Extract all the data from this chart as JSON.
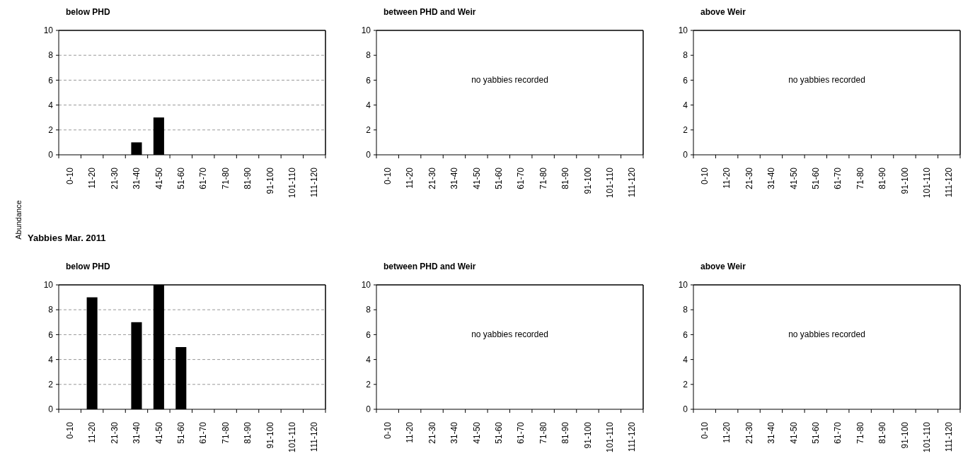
{
  "chart_data": [
    {
      "type": "bar",
      "subtitle": "below PHD",
      "ylabel": "Abundance",
      "categories": [
        "0-10",
        "11-20",
        "21-30",
        "31-40",
        "41-50",
        "51-60",
        "61-70",
        "71-80",
        "81-90",
        "91-100",
        "101-110",
        "111-120"
      ],
      "values": [
        0,
        0,
        0,
        1,
        3,
        0,
        0,
        0,
        0,
        0,
        0,
        0
      ],
      "color": "#000000",
      "ylim": [
        0,
        10
      ],
      "yticks": [
        0,
        2,
        4,
        6,
        8,
        10
      ],
      "grid": "y"
    },
    {
      "type": "bar",
      "subtitle": "between PHD and Weir",
      "categories": [
        "0-10",
        "11-20",
        "21-30",
        "31-40",
        "41-50",
        "51-60",
        "61-70",
        "71-80",
        "81-90",
        "91-100",
        "101-110",
        "111-120"
      ],
      "values": [
        0,
        0,
        0,
        0,
        0,
        0,
        0,
        0,
        0,
        0,
        0,
        0
      ],
      "color": "#000000",
      "ylim": [
        0,
        10
      ],
      "yticks": [
        0,
        2,
        4,
        6,
        8,
        10
      ],
      "annotations": [
        "no yabbies recorded"
      ]
    },
    {
      "type": "bar",
      "subtitle": "above Weir",
      "categories": [
        "0-10",
        "11-20",
        "21-30",
        "31-40",
        "41-50",
        "51-60",
        "61-70",
        "71-80",
        "81-90",
        "91-100",
        "101-110",
        "111-120"
      ],
      "values": [
        0,
        0,
        0,
        0,
        0,
        0,
        0,
        0,
        0,
        0,
        0,
        0
      ],
      "color": "#000000",
      "ylim": [
        0,
        10
      ],
      "yticks": [
        0,
        2,
        4,
        6,
        8,
        10
      ],
      "annotations": [
        "no yabbies recorded"
      ]
    },
    {
      "type": "bar",
      "title": "Yabbies   Mar. 2011",
      "subtitle": "below PHD",
      "categories": [
        "0-10",
        "11-20",
        "21-30",
        "31-40",
        "41-50",
        "51-60",
        "61-70",
        "71-80",
        "81-90",
        "91-100",
        "101-110",
        "111-120"
      ],
      "values": [
        0,
        9,
        0,
        7,
        10,
        5,
        0,
        0,
        0,
        0,
        0,
        0
      ],
      "color": "#000000",
      "ylim": [
        0,
        10
      ],
      "yticks": [
        0,
        2,
        4,
        6,
        8,
        10
      ],
      "grid": "y"
    },
    {
      "type": "bar",
      "subtitle": "between PHD and Weir",
      "categories": [
        "0-10",
        "11-20",
        "21-30",
        "31-40",
        "41-50",
        "51-60",
        "61-70",
        "71-80",
        "81-90",
        "91-100",
        "101-110",
        "111-120"
      ],
      "values": [
        0,
        0,
        0,
        0,
        0,
        0,
        0,
        0,
        0,
        0,
        0,
        0
      ],
      "color": "#000000",
      "ylim": [
        0,
        10
      ],
      "yticks": [
        0,
        2,
        4,
        6,
        8,
        10
      ],
      "annotations": [
        "no yabbies recorded"
      ]
    },
    {
      "type": "bar",
      "subtitle": "above Weir",
      "categories": [
        "0-10",
        "11-20",
        "21-30",
        "31-40",
        "41-50",
        "51-60",
        "61-70",
        "71-80",
        "81-90",
        "91-100",
        "101-110",
        "111-120"
      ],
      "values": [
        0,
        0,
        0,
        0,
        0,
        0,
        0,
        0,
        0,
        0,
        0,
        0
      ],
      "color": "#000000",
      "ylim": [
        0,
        10
      ],
      "yticks": [
        0,
        2,
        4,
        6,
        8,
        10
      ],
      "annotations": [
        "no yabbies recorded"
      ]
    }
  ]
}
